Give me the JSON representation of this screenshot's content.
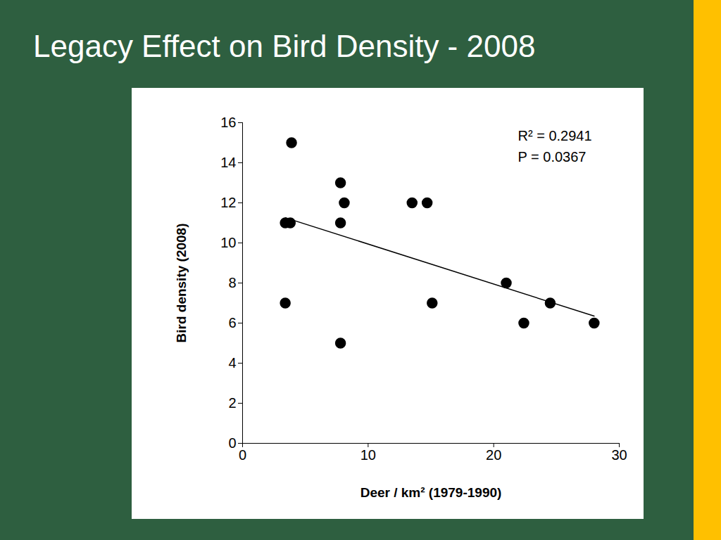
{
  "chart_data": {
    "type": "scatter",
    "title": "Legacy Effect on Bird Density - 2008",
    "x_label": "Deer / km² (1979-1990)",
    "y_label": "Bird density (2008)",
    "x": [
      3.4,
      3.8,
      3.9,
      3.4,
      7.8,
      8.1,
      7.8,
      7.8,
      13.5,
      14.7,
      15.1,
      21,
      22.4,
      24.5,
      28
    ],
    "values": [
      11,
      11,
      15,
      7,
      13,
      12,
      11,
      5,
      12,
      12,
      7,
      8,
      6,
      7,
      6
    ],
    "color": "#000000",
    "marker": "circle",
    "xlim": [
      0,
      30
    ],
    "ylim": [
      0,
      16
    ],
    "xticks": [
      0,
      10,
      20,
      30
    ],
    "yticks": [
      0,
      2,
      4,
      6,
      8,
      10,
      12,
      14,
      16
    ],
    "fit_line": {
      "x": [
        3.4,
        28
      ],
      "y": [
        11.26,
        6.35
      ]
    },
    "annotations": [
      "R² = 0.2941",
      "P = 0.0367"
    ],
    "grid": false
  }
}
